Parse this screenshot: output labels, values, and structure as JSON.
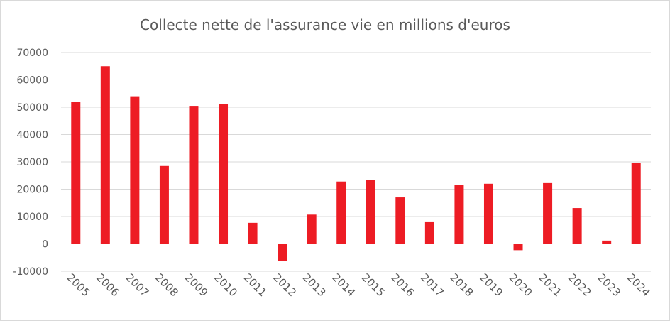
{
  "chart_data": {
    "type": "bar",
    "title": "Collecte nette de l'assurance vie en millions d'euros",
    "xlabel": "",
    "ylabel": "",
    "categories": [
      "2005",
      "2006",
      "2007",
      "2008",
      "2009",
      "2010",
      "2011",
      "2012",
      "2013",
      "2014",
      "2015",
      "2016",
      "2017",
      "2018",
      "2019",
      "2020",
      "2021",
      "2022",
      "2023",
      "2024"
    ],
    "values": [
      52000,
      65000,
      54000,
      28500,
      50500,
      51200,
      7700,
      -6200,
      10700,
      22800,
      23500,
      17000,
      8200,
      21500,
      22000,
      -2300,
      22500,
      13100,
      1200,
      29500
    ],
    "ylim": [
      -10000,
      70000
    ],
    "yticks": [
      "-10000",
      "0",
      "10000",
      "20000",
      "30000",
      "40000",
      "50000",
      "60000",
      "70000"
    ],
    "bar_color": "#ed1c24",
    "grid": true,
    "legend": "none"
  }
}
